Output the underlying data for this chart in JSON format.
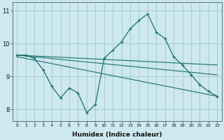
{
  "title": "",
  "xlabel": "Humidex (Indice chaleur)",
  "bg_color": "#cde8ee",
  "grid_color": "#a0c8c8",
  "line_color": "#1a7070",
  "xlim": [
    -0.5,
    23.5
  ],
  "ylim": [
    7.65,
    11.25
  ],
  "yticks": [
    8,
    9,
    10,
    11
  ],
  "xticks": [
    0,
    1,
    2,
    3,
    4,
    5,
    6,
    7,
    8,
    9,
    10,
    11,
    12,
    13,
    14,
    15,
    16,
    17,
    18,
    19,
    20,
    21,
    22,
    23
  ],
  "main_data_x": [
    0,
    1,
    2,
    3,
    4,
    5,
    6,
    7,
    8,
    9,
    10,
    11,
    12,
    13,
    14,
    15,
    16,
    17,
    18,
    19,
    20,
    21,
    22,
    23
  ],
  "main_data_y": [
    9.65,
    9.65,
    9.55,
    9.2,
    8.7,
    8.35,
    8.65,
    8.5,
    7.9,
    8.15,
    9.55,
    9.8,
    10.05,
    10.45,
    10.7,
    10.9,
    10.35,
    10.15,
    9.6,
    9.35,
    9.05,
    8.75,
    8.55,
    8.4
  ],
  "reg_line1_x": [
    0,
    23
  ],
  "reg_line1_y": [
    9.65,
    9.35
  ],
  "reg_line2_x": [
    0,
    23
  ],
  "reg_line2_y": [
    9.65,
    9.05
  ],
  "reg_line3_x": [
    0,
    23
  ],
  "reg_line3_y": [
    9.6,
    8.4
  ],
  "xlabel_fontsize": 6.5,
  "xlabel_fontweight": "bold",
  "xtick_fontsize": 4.5,
  "ytick_fontsize": 6.0
}
